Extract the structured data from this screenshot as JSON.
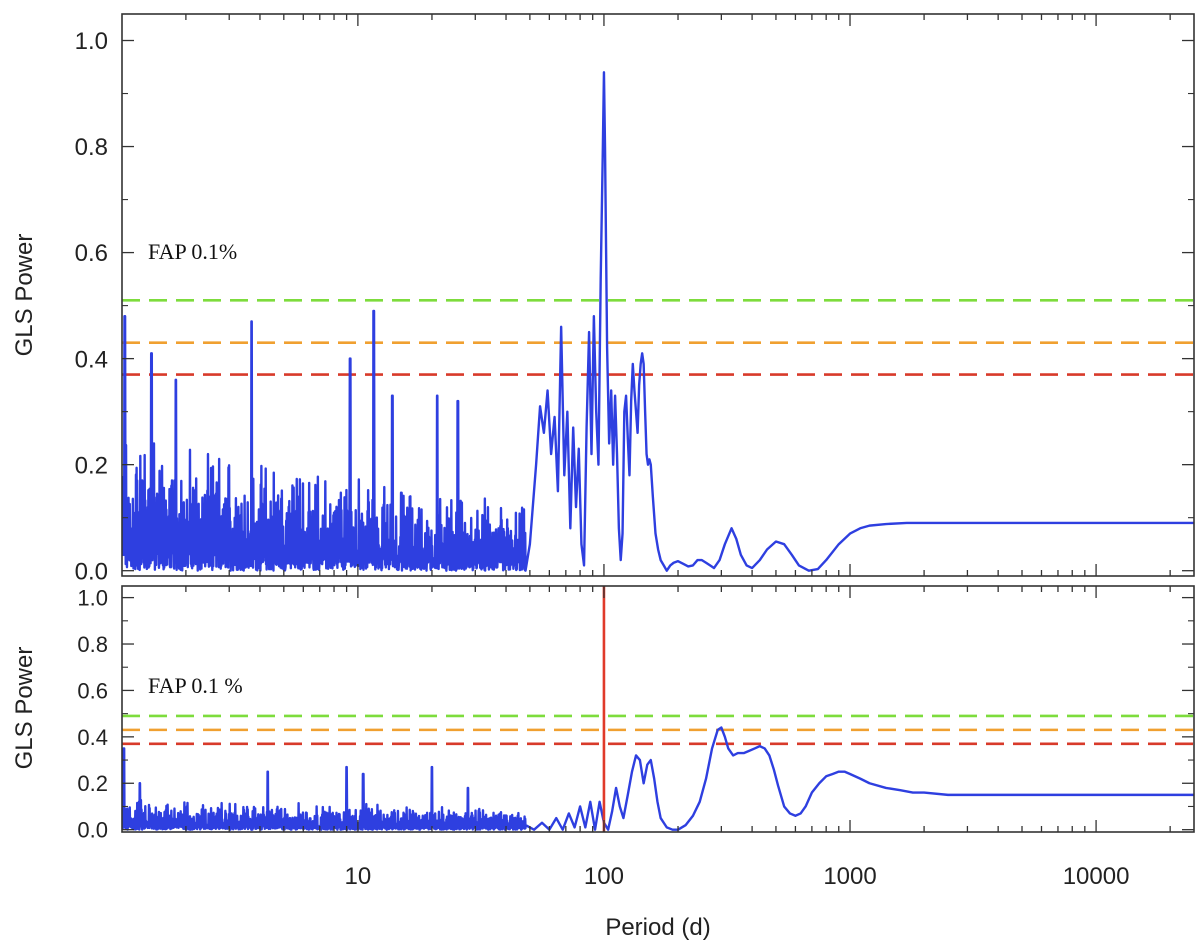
{
  "chart_data": [
    {
      "type": "line",
      "panel": "top",
      "xlabel": "",
      "ylabel": "GLS Power",
      "xscale": "log",
      "xlim": [
        1.1,
        25000
      ],
      "ylim": [
        -0.01,
        1.05
      ],
      "yticks": [
        0.0,
        0.2,
        0.4,
        0.6,
        0.8,
        1.0
      ],
      "ytick_labels": [
        "0.0",
        "0.2",
        "0.4",
        "0.6",
        "0.8",
        "1.0"
      ],
      "show_xtick_labels": false,
      "annotation": "FAP  0.1%",
      "fap_levels": [
        {
          "value": 0.51,
          "color": "#7ddc3c"
        },
        {
          "value": 0.43,
          "color": "#f0a030"
        },
        {
          "value": 0.37,
          "color": "#d83a2a"
        }
      ],
      "series_color": "#2e3fe0",
      "series": [
        {
          "kind": "noise",
          "x_range": [
            1.1,
            48
          ],
          "amp_start": 0.2,
          "amp_end": 0.09,
          "spikes": [
            [
              1.13,
              0.48
            ],
            [
              1.45,
              0.41
            ],
            [
              1.82,
              0.36
            ],
            [
              3.7,
              0.47
            ],
            [
              9.3,
              0.4
            ],
            [
              11.6,
              0.49
            ],
            [
              13.8,
              0.33
            ],
            [
              21.0,
              0.33
            ],
            [
              25.5,
              0.32
            ]
          ]
        },
        {
          "kind": "curve",
          "x": [
            48,
            50,
            53,
            55,
            57,
            59,
            61,
            63,
            65,
            67,
            69,
            71,
            73,
            75,
            77,
            79,
            81,
            83,
            85,
            87,
            89,
            91,
            93,
            95,
            97,
            99,
            100,
            101,
            103,
            105,
            107,
            109,
            111,
            113,
            115,
            117,
            119,
            121,
            123,
            125,
            127,
            129,
            131,
            133,
            135,
            137,
            139,
            141,
            143,
            145,
            147,
            149,
            151,
            153,
            155,
            158,
            162,
            166,
            170,
            175,
            180,
            186,
            192,
            200,
            210,
            220,
            230,
            240,
            250,
            260,
            270,
            280,
            295,
            310,
            330,
            345,
            360,
            380,
            400,
            430,
            460,
            500,
            540,
            580,
            620,
            680,
            740,
            800,
            900,
            1000,
            1100,
            1200,
            1400,
            1700,
            2000,
            3000,
            5000,
            10000,
            25000
          ],
          "y": [
            0.0,
            0.05,
            0.2,
            0.31,
            0.26,
            0.34,
            0.22,
            0.29,
            0.15,
            0.46,
            0.18,
            0.3,
            0.08,
            0.27,
            0.12,
            0.23,
            0.05,
            0.01,
            0.27,
            0.45,
            0.22,
            0.48,
            0.3,
            0.2,
            0.55,
            0.8,
            0.94,
            0.8,
            0.42,
            0.24,
            0.34,
            0.2,
            0.33,
            0.22,
            0.08,
            0.02,
            0.07,
            0.3,
            0.33,
            0.25,
            0.18,
            0.32,
            0.39,
            0.34,
            0.3,
            0.26,
            0.35,
            0.39,
            0.41,
            0.39,
            0.3,
            0.22,
            0.2,
            0.21,
            0.2,
            0.14,
            0.07,
            0.04,
            0.02,
            0.01,
            0.0,
            0.01,
            0.015,
            0.018,
            0.013,
            0.008,
            0.01,
            0.02,
            0.02,
            0.015,
            0.01,
            0.005,
            0.02,
            0.05,
            0.08,
            0.06,
            0.03,
            0.01,
            0.005,
            0.02,
            0.04,
            0.055,
            0.05,
            0.03,
            0.01,
            0.0,
            0.003,
            0.02,
            0.05,
            0.07,
            0.08,
            0.085,
            0.088,
            0.09,
            0.09,
            0.09,
            0.09,
            0.09,
            0.09
          ]
        }
      ]
    },
    {
      "type": "line",
      "panel": "bottom",
      "xlabel": "Period (d)",
      "ylabel": "GLS Power",
      "xscale": "log",
      "xlim": [
        1.1,
        25000
      ],
      "ylim": [
        -0.01,
        1.05
      ],
      "yticks": [
        0.0,
        0.2,
        0.4,
        0.6,
        0.8,
        1.0
      ],
      "ytick_labels": [
        "0.0",
        "0.2",
        "0.4",
        "0.6",
        "0.8",
        "1.0"
      ],
      "xticks": [
        10,
        100,
        1000,
        10000
      ],
      "xtick_labels": [
        "10",
        "100",
        "1000",
        "10000"
      ],
      "show_xtick_labels": true,
      "annotation": "FAP  0.1  %",
      "marker_line": {
        "x": 100,
        "color": "#e03a2a"
      },
      "fap_levels": [
        {
          "value": 0.49,
          "color": "#7ddc3c"
        },
        {
          "value": 0.43,
          "color": "#f0a030"
        },
        {
          "value": 0.37,
          "color": "#d83a2a"
        }
      ],
      "series_color": "#2e3fe0",
      "series": [
        {
          "kind": "noise",
          "x_range": [
            1.1,
            48
          ],
          "amp_start": 0.1,
          "amp_end": 0.07,
          "spikes": [
            [
              1.12,
              0.35
            ],
            [
              1.3,
              0.2
            ],
            [
              4.3,
              0.25
            ],
            [
              9.0,
              0.27
            ],
            [
              10.5,
              0.24
            ],
            [
              20.0,
              0.27
            ],
            [
              28.0,
              0.18
            ]
          ]
        },
        {
          "kind": "curve",
          "x": [
            48,
            52,
            56,
            60,
            64,
            68,
            72,
            76,
            80,
            84,
            88,
            92,
            96,
            100,
            104,
            108,
            112,
            116,
            120,
            125,
            130,
            135,
            140,
            145,
            150,
            155,
            160,
            165,
            170,
            180,
            190,
            200,
            215,
            230,
            245,
            260,
            275,
            290,
            300,
            310,
            320,
            335,
            350,
            370,
            390,
            410,
            430,
            450,
            470,
            490,
            510,
            540,
            570,
            600,
            630,
            660,
            700,
            750,
            800,
            850,
            900,
            950,
            1000,
            1100,
            1200,
            1400,
            1600,
            1800,
            2000,
            2500,
            3000,
            4000,
            6000,
            10000,
            25000
          ],
          "y": [
            0.02,
            0.0,
            0.03,
            0.0,
            0.05,
            0.0,
            0.07,
            0.01,
            0.1,
            0.01,
            0.12,
            0.0,
            0.12,
            0.03,
            0.0,
            0.08,
            0.18,
            0.1,
            0.05,
            0.15,
            0.25,
            0.32,
            0.3,
            0.2,
            0.28,
            0.3,
            0.22,
            0.12,
            0.05,
            0.01,
            0.0,
            0.0,
            0.02,
            0.06,
            0.12,
            0.22,
            0.35,
            0.43,
            0.44,
            0.4,
            0.35,
            0.32,
            0.33,
            0.33,
            0.34,
            0.35,
            0.36,
            0.35,
            0.32,
            0.26,
            0.19,
            0.1,
            0.07,
            0.06,
            0.07,
            0.1,
            0.16,
            0.2,
            0.23,
            0.24,
            0.25,
            0.25,
            0.24,
            0.22,
            0.2,
            0.18,
            0.17,
            0.16,
            0.16,
            0.15,
            0.15,
            0.15,
            0.15,
            0.15,
            0.15
          ]
        }
      ]
    }
  ]
}
